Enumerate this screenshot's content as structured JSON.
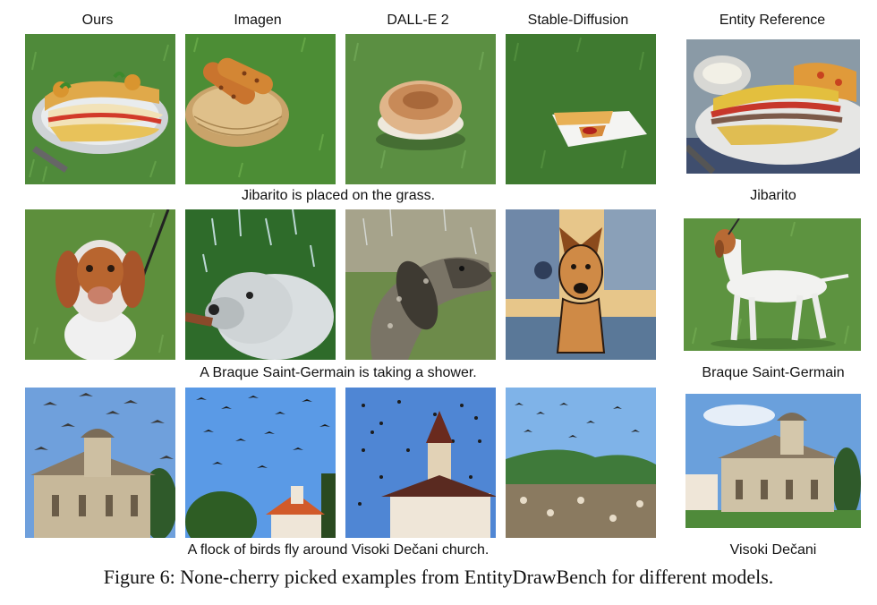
{
  "columns": [
    "Ours",
    "Imagen",
    "DALL-E 2",
    "Stable-Diffusion",
    "Entity Reference"
  ],
  "rows": [
    {
      "prompt": "Jibarito is placed on the grass.",
      "entity": "Jibarito",
      "images": [
        "sandwich on plate on grass",
        "fried plantain strips in basket on grass",
        "flatbread on grass",
        "wrap on plate on grass"
      ],
      "reference_image": "jibarito sandwich on plate"
    },
    {
      "prompt": "A Braque Saint-Germain is taking a shower.",
      "entity": "Braque Saint-Germain",
      "images": [
        "wet spaniel dog on grass",
        "dog under water spray",
        "wet pointer dog",
        "cartoon dog painting"
      ],
      "reference_image": "white and orange pointer dog on grass"
    },
    {
      "prompt": "A flock of birds fly around Visoki Dečani church.",
      "entity": "Visoki Dečani",
      "images": [
        "birds flying around stone church",
        "birds over tree and house",
        "birds around church tower",
        "birds over crowd and hills"
      ],
      "reference_image": "Visoki Dečani monastery church"
    }
  ],
  "caption": "Figure 6: None-cherry picked examples from EntityDrawBench for different models."
}
